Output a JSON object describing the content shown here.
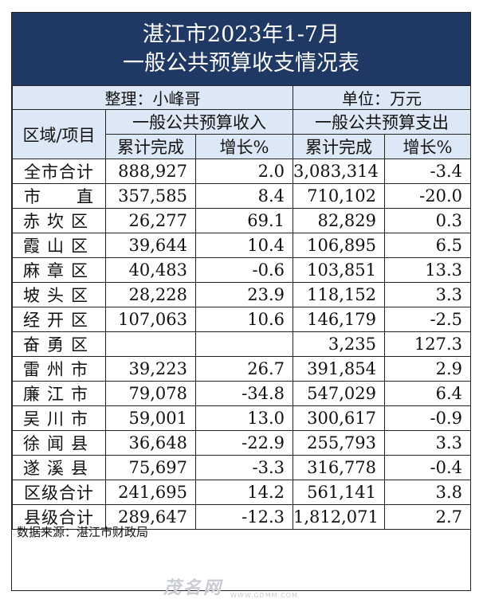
{
  "title": {
    "line1": "湛江市2023年1-7月",
    "line2": "一般公共预算收支情况表"
  },
  "meta": {
    "compiler": "整理：小峰哥",
    "unit": "单位：万元"
  },
  "headers": {
    "region_item": "区域/项目",
    "revenue_group": "一般公共预算收入",
    "expenditure_group": "一般公共预算支出",
    "cumulative": "累计完成",
    "growth": "增长%"
  },
  "rows": [
    {
      "name": "全市合计",
      "rev": "888,927",
      "rev_g": "2.0",
      "exp": "3,083,314",
      "exp_g": "-3.4"
    },
    {
      "name": "市　　直",
      "rev": "357,585",
      "rev_g": "8.4",
      "exp": "710,102",
      "exp_g": "-20.0"
    },
    {
      "name": "赤坎区",
      "rev": "26,277",
      "rev_g": "69.1",
      "exp": "82,829",
      "exp_g": "0.3"
    },
    {
      "name": "霞山区",
      "rev": "39,644",
      "rev_g": "10.4",
      "exp": "106,895",
      "exp_g": "6.5"
    },
    {
      "name": "麻章区",
      "rev": "40,483",
      "rev_g": "-0.6",
      "exp": "103,851",
      "exp_g": "13.3"
    },
    {
      "name": "坡头区",
      "rev": "28,228",
      "rev_g": "23.9",
      "exp": "118,152",
      "exp_g": "3.3"
    },
    {
      "name": "经开区",
      "rev": "107,063",
      "rev_g": "10.6",
      "exp": "146,179",
      "exp_g": "-2.5"
    },
    {
      "name": "奋勇区",
      "rev": "",
      "rev_g": "",
      "exp": "3,235",
      "exp_g": "127.3"
    },
    {
      "name": "雷州市",
      "rev": "39,223",
      "rev_g": "26.7",
      "exp": "391,854",
      "exp_g": "2.9"
    },
    {
      "name": "廉江市",
      "rev": "79,078",
      "rev_g": "-34.8",
      "exp": "547,029",
      "exp_g": "6.4"
    },
    {
      "name": "吴川市",
      "rev": "59,001",
      "rev_g": "13.0",
      "exp": "300,617",
      "exp_g": "-0.9"
    },
    {
      "name": "徐闻县",
      "rev": "36,648",
      "rev_g": "-22.9",
      "exp": "255,793",
      "exp_g": "3.3"
    },
    {
      "name": "遂溪县",
      "rev": "75,697",
      "rev_g": "-3.3",
      "exp": "316,778",
      "exp_g": "-0.4"
    },
    {
      "name": "区级合计",
      "rev": "241,695",
      "rev_g": "14.2",
      "exp": "561,141",
      "exp_g": "3.8"
    },
    {
      "name": "县级合计",
      "rev": "289,647",
      "rev_g": "-12.3",
      "exp": "1,812,071",
      "exp_g": "2.7"
    }
  ],
  "source": "数据来源：湛江市财政局",
  "watermark": {
    "brand": "茂名网",
    "url": "WWW.GDMM.COM"
  }
}
